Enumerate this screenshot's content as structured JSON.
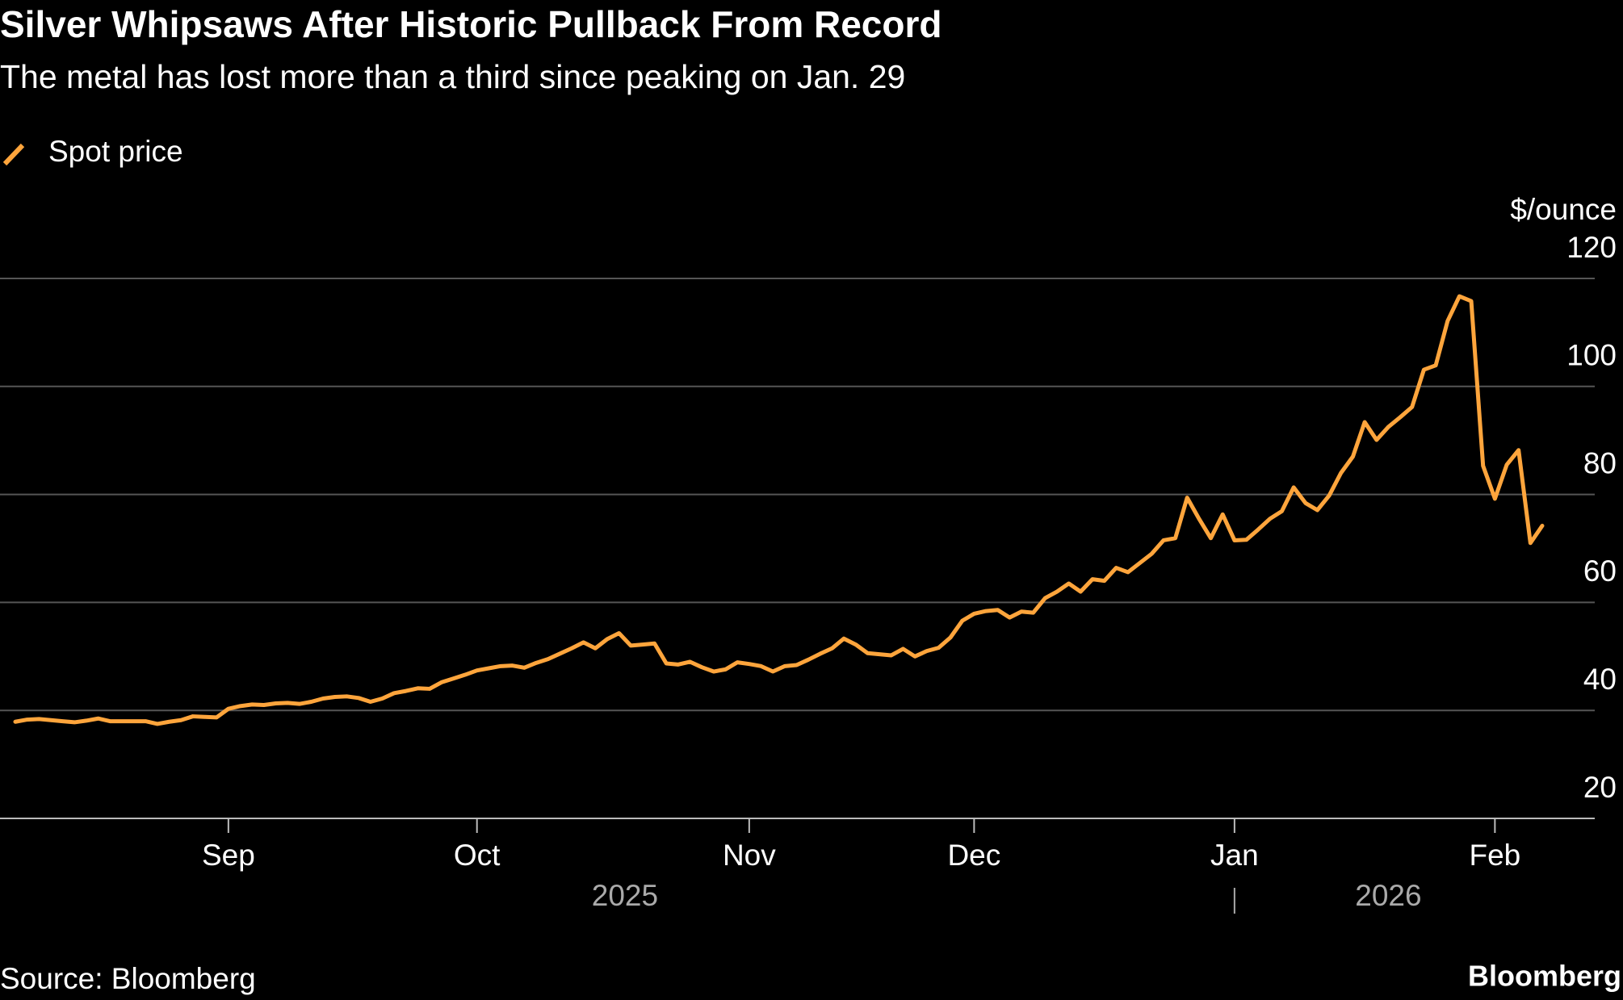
{
  "chart_data": {
    "type": "line",
    "title": "Silver Whipsaws After Historic Pullback From Record",
    "subtitle": "The metal has lost more than a third since peaking on Jan. 29",
    "y_axis_label": "$/ounce",
    "source": "Source: Bloomberg",
    "brand": "Bloomberg",
    "years": [
      "2025",
      "2026"
    ],
    "categories": [
      null,
      null,
      null,
      null,
      null,
      null,
      null,
      null,
      null,
      null,
      null,
      null,
      null,
      null,
      null,
      null,
      null,
      null,
      "Sep",
      null,
      null,
      null,
      null,
      null,
      null,
      null,
      null,
      null,
      null,
      null,
      null,
      null,
      null,
      null,
      null,
      null,
      null,
      null,
      null,
      "Oct",
      null,
      null,
      null,
      null,
      null,
      null,
      null,
      null,
      null,
      null,
      null,
      null,
      null,
      null,
      null,
      null,
      null,
      null,
      null,
      null,
      null,
      null,
      "Nov",
      null,
      null,
      null,
      null,
      null,
      null,
      null,
      null,
      null,
      null,
      null,
      null,
      null,
      null,
      null,
      null,
      null,
      null,
      "Dec",
      null,
      null,
      null,
      null,
      null,
      null,
      null,
      null,
      null,
      null,
      null,
      null,
      null,
      null,
      null,
      null,
      null,
      null,
      null,
      null,
      null,
      "Jan",
      null,
      null,
      null,
      null,
      null,
      null,
      null,
      null,
      null,
      null,
      null,
      null,
      null,
      null,
      null,
      null,
      null,
      null,
      null,
      null,
      null,
      "Feb",
      null,
      null,
      null,
      null
    ],
    "series": [
      {
        "name": "Spot price",
        "color": "#ffa53c",
        "values": [
          37.9,
          38.3,
          38.4,
          38.2,
          38.0,
          37.8,
          38.1,
          38.5,
          38.0,
          38.0,
          38.0,
          38.0,
          37.5,
          37.9,
          38.2,
          38.9,
          38.8,
          38.7,
          40.3,
          40.8,
          41.1,
          41.0,
          41.3,
          41.4,
          41.2,
          41.6,
          42.2,
          42.5,
          42.6,
          42.3,
          41.6,
          42.2,
          43.2,
          43.6,
          44.1,
          44.0,
          45.2,
          45.9,
          46.6,
          47.4,
          47.8,
          48.2,
          48.3,
          47.9,
          48.8,
          49.5,
          50.5,
          51.5,
          52.6,
          51.5,
          53.2,
          54.3,
          52.0,
          52.2,
          52.4,
          48.7,
          48.5,
          49.0,
          48.0,
          47.2,
          47.6,
          48.9,
          48.6,
          48.2,
          47.2,
          48.2,
          48.4,
          49.4,
          50.5,
          51.5,
          53.3,
          52.2,
          50.6,
          50.4,
          50.2,
          51.4,
          50.0,
          51.0,
          51.6,
          53.5,
          56.6,
          57.9,
          58.4,
          58.6,
          57.2,
          58.3,
          58.1,
          60.8,
          62.0,
          63.5,
          62.0,
          64.3,
          64.0,
          66.4,
          65.6,
          67.3,
          69.0,
          71.5,
          71.9,
          79.4,
          75.5,
          71.9,
          76.3,
          71.5,
          71.6,
          73.5,
          75.5,
          76.9,
          81.3,
          78.4,
          77.1,
          79.8,
          84.0,
          87.0,
          93.4,
          90.1,
          92.5,
          94.3,
          96.2,
          103.1,
          103.9,
          112.1,
          116.7,
          115.8,
          85.3,
          79.2,
          85.5,
          88.2,
          71.0,
          74.2
        ]
      }
    ],
    "ylim": [
      20,
      120
    ],
    "yticks": [
      20,
      40,
      60,
      80,
      100,
      120
    ],
    "grid": true
  }
}
